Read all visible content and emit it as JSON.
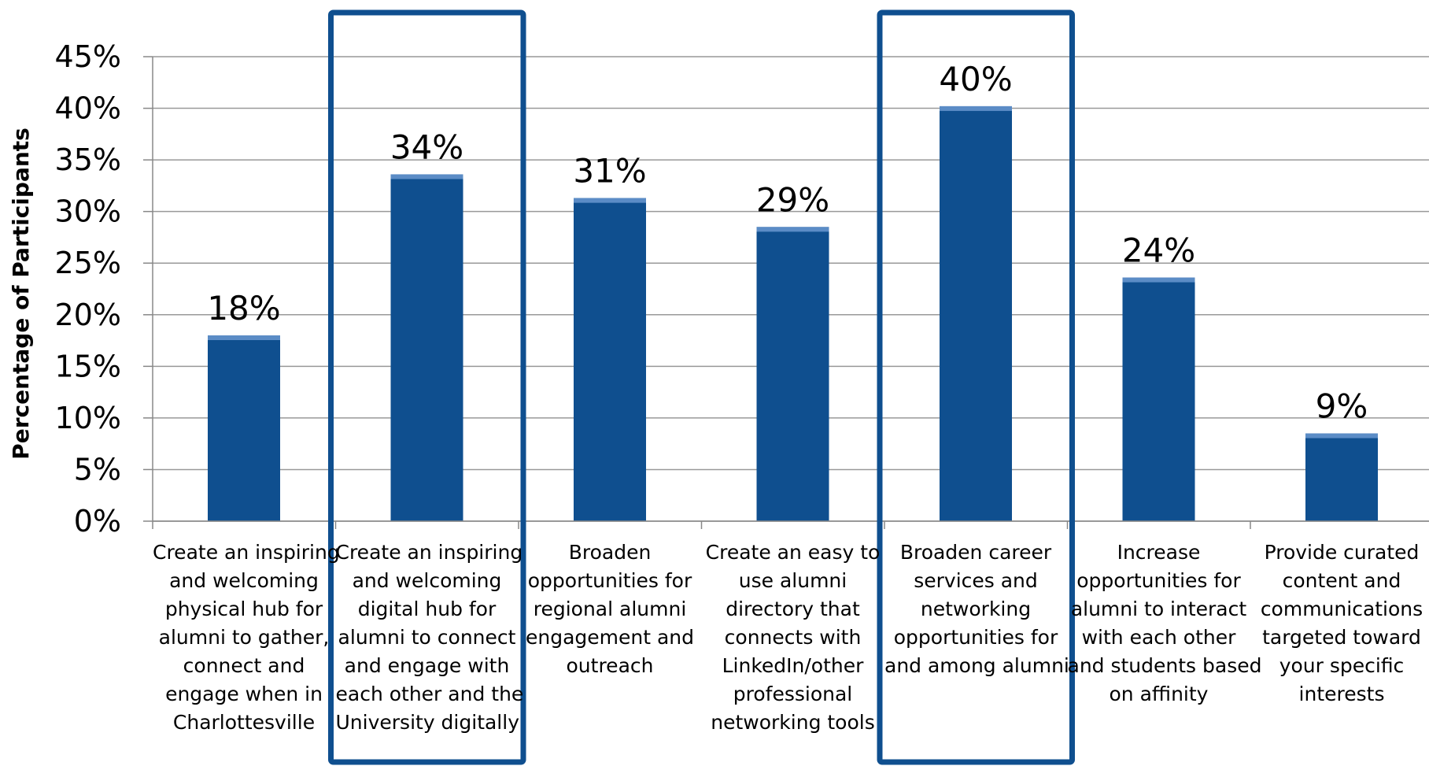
{
  "chart_data": {
    "type": "bar",
    "ylabel": "Percentage of Participants",
    "xlabel": "",
    "ylim": [
      0,
      45
    ],
    "y_ticks": [
      "0%",
      "5%",
      "10%",
      "15%",
      "20%",
      "25%",
      "30%",
      "35%",
      "40%",
      "45%"
    ],
    "grid": true,
    "bar_color": "#0f4f8f",
    "highlight_color": "#0f4f8f",
    "highlighted_categories": [
      1,
      4
    ],
    "categories": [
      [
        "Create an inspiring",
        "and welcoming",
        "physical hub for",
        "alumni to gather,",
        "connect and",
        "engage when in",
        "Charlottesville"
      ],
      [
        "Create an inspiring",
        "and welcoming",
        "digital hub for",
        "alumni to connect",
        "and engage with",
        "each other and the",
        "University digitally"
      ],
      [
        "Broaden",
        "opportunities for",
        "regional alumni",
        "engagement and",
        "outreach"
      ],
      [
        "Create an easy to",
        "use alumni",
        "directory that",
        "connects with",
        "LinkedIn/other",
        "professional",
        "networking tools"
      ],
      [
        "Broaden career",
        "services and",
        "networking",
        "opportunities for",
        "and among alumni"
      ],
      [
        "Increase",
        "opportunities for",
        "alumni to interact",
        "with each other",
        "and students based",
        "on affinity"
      ],
      [
        "Provide curated",
        "content and",
        "communications",
        "targeted toward",
        "your specific",
        "interests"
      ]
    ],
    "values": [
      18,
      33.6,
      31.3,
      28.5,
      40.2,
      23.6,
      8.5
    ],
    "data_labels": [
      "18%",
      "34%",
      "31%",
      "29%",
      "40%",
      "24%",
      "9%"
    ]
  }
}
